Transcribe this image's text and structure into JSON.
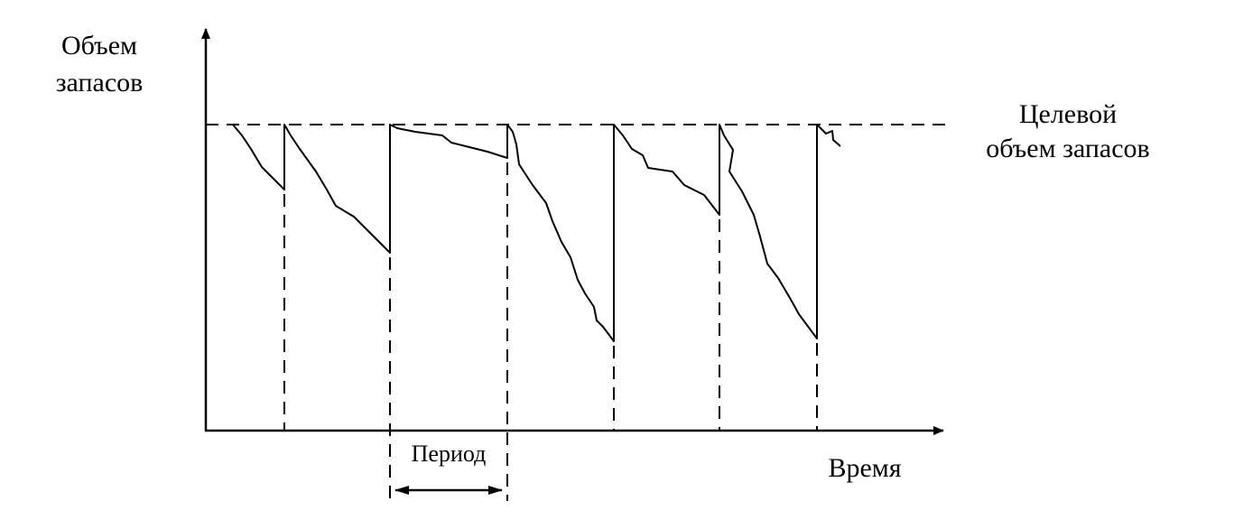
{
  "y_label": [
    "Объем",
    "запасов"
  ],
  "target_label": [
    "Целевой",
    "объем запасов"
  ],
  "period_label": "Период",
  "x_label": "Время"
}
